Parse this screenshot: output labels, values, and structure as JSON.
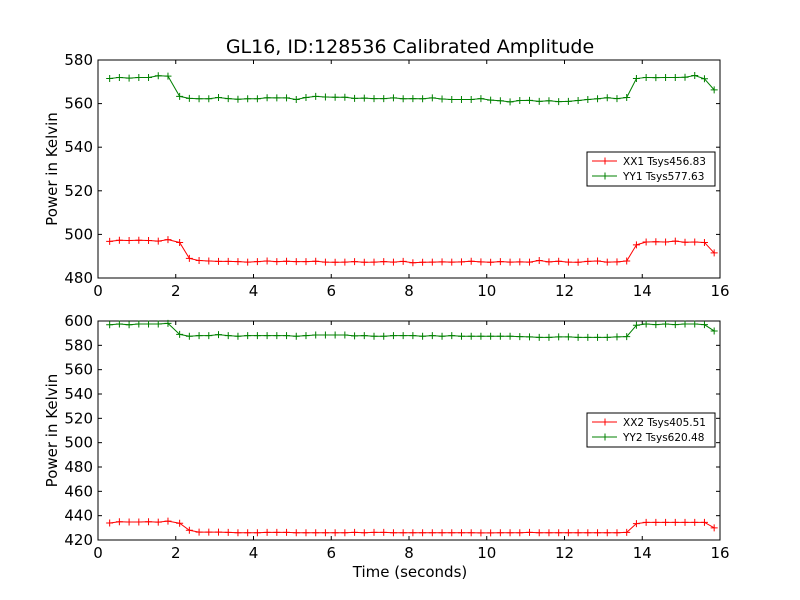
{
  "title": "GL16, ID:128536 Calibrated Amplitude",
  "xlabel": "Time (seconds)",
  "chart_data": [
    {
      "type": "line",
      "title": "GL16, ID:128536 Calibrated Amplitude",
      "xlabel": "",
      "ylabel": "Power in Kelvin",
      "xlim": [
        0,
        16
      ],
      "ylim": [
        480,
        580
      ],
      "xticks": [
        0,
        2,
        4,
        6,
        8,
        10,
        12,
        14,
        16
      ],
      "yticks": [
        480,
        500,
        520,
        540,
        560,
        580
      ],
      "grid": false,
      "legend_position": "center-right",
      "x": [
        0.3,
        0.55,
        0.8,
        1.05,
        1.3,
        1.55,
        1.8,
        2.1,
        2.35,
        2.6,
        2.85,
        3.1,
        3.35,
        3.6,
        3.85,
        4.1,
        4.35,
        4.6,
        4.85,
        5.1,
        5.35,
        5.6,
        5.85,
        6.1,
        6.35,
        6.6,
        6.85,
        7.1,
        7.35,
        7.6,
        7.85,
        8.1,
        8.35,
        8.6,
        8.85,
        9.1,
        9.35,
        9.6,
        9.85,
        10.1,
        10.35,
        10.6,
        10.85,
        11.1,
        11.35,
        11.6,
        11.85,
        12.1,
        12.35,
        12.6,
        12.85,
        13.1,
        13.35,
        13.6,
        13.85,
        14.1,
        14.35,
        14.6,
        14.85,
        15.1,
        15.35,
        15.6,
        15.85
      ],
      "series": [
        {
          "name": "XX1 Tsys456.83",
          "color": "#ff0000",
          "values": [
            496.8,
            497.3,
            497.2,
            497.3,
            497.2,
            496.9,
            497.6,
            496.3,
            489.0,
            488.0,
            487.8,
            487.6,
            487.6,
            487.5,
            487.3,
            487.5,
            487.8,
            487.5,
            487.7,
            487.5,
            487.5,
            487.7,
            487.3,
            487.2,
            487.3,
            487.5,
            487.2,
            487.3,
            487.5,
            487.3,
            487.6,
            487.0,
            487.2,
            487.3,
            487.4,
            487.3,
            487.4,
            487.7,
            487.4,
            487.2,
            487.5,
            487.3,
            487.4,
            487.3,
            488.0,
            487.4,
            487.7,
            487.3,
            487.2,
            487.6,
            487.8,
            487.3,
            487.4,
            487.8,
            495.2,
            496.5,
            496.6,
            496.5,
            496.9,
            496.4,
            496.5,
            496.3,
            491.5
          ]
        },
        {
          "name": "YY1 Tsys577.63",
          "color": "#008000",
          "values": [
            571.5,
            572.0,
            571.7,
            572.0,
            572.0,
            572.8,
            572.6,
            563.3,
            562.4,
            562.2,
            562.2,
            562.8,
            562.3,
            562.0,
            562.2,
            562.2,
            562.7,
            562.6,
            562.6,
            561.9,
            562.8,
            563.3,
            563.0,
            562.9,
            562.9,
            562.4,
            562.5,
            562.3,
            562.3,
            562.6,
            562.2,
            562.3,
            562.2,
            562.6,
            562.1,
            561.9,
            561.9,
            561.9,
            562.3,
            561.6,
            561.3,
            560.8,
            561.4,
            561.5,
            561.0,
            561.3,
            560.9,
            561.0,
            561.4,
            561.9,
            562.2,
            562.7,
            562.3,
            562.8,
            571.5,
            572.0,
            571.9,
            572.0,
            572.0,
            572.1,
            572.9,
            571.4,
            566.3
          ]
        }
      ]
    },
    {
      "type": "line",
      "title": "",
      "xlabel": "Time (seconds)",
      "ylabel": "Power in Kelvin",
      "xlim": [
        0,
        16
      ],
      "ylim": [
        420,
        600
      ],
      "xticks": [
        0,
        2,
        4,
        6,
        8,
        10,
        12,
        14,
        16
      ],
      "yticks": [
        420,
        440,
        460,
        480,
        500,
        520,
        540,
        560,
        580,
        600
      ],
      "grid": false,
      "legend_position": "center-right",
      "x": [
        0.3,
        0.55,
        0.8,
        1.05,
        1.3,
        1.55,
        1.8,
        2.1,
        2.35,
        2.6,
        2.85,
        3.1,
        3.35,
        3.6,
        3.85,
        4.1,
        4.35,
        4.6,
        4.85,
        5.1,
        5.35,
        5.6,
        5.85,
        6.1,
        6.35,
        6.6,
        6.85,
        7.1,
        7.35,
        7.6,
        7.85,
        8.1,
        8.35,
        8.6,
        8.85,
        9.1,
        9.35,
        9.6,
        9.85,
        10.1,
        10.35,
        10.6,
        10.85,
        11.1,
        11.35,
        11.6,
        11.85,
        12.1,
        12.35,
        12.6,
        12.85,
        13.1,
        13.35,
        13.6,
        13.85,
        14.1,
        14.35,
        14.6,
        14.85,
        15.1,
        15.35,
        15.6,
        15.85
      ],
      "series": [
        {
          "name": "XX2 Tsys405.51",
          "color": "#ff0000",
          "values": [
            434.0,
            435.0,
            434.8,
            434.8,
            435.0,
            434.7,
            435.5,
            433.8,
            428.0,
            426.5,
            426.5,
            426.5,
            426.3,
            426.0,
            426.0,
            426.0,
            426.3,
            426.3,
            426.3,
            426.0,
            426.0,
            426.0,
            426.0,
            426.0,
            426.0,
            426.3,
            426.0,
            426.3,
            426.3,
            426.0,
            426.0,
            426.0,
            426.0,
            426.0,
            426.0,
            426.0,
            426.0,
            426.0,
            425.9,
            425.9,
            426.0,
            426.0,
            426.0,
            426.3,
            426.0,
            426.0,
            426.0,
            426.0,
            426.0,
            426.0,
            426.0,
            426.0,
            426.0,
            426.3,
            433.5,
            434.5,
            434.5,
            434.5,
            434.5,
            434.5,
            434.5,
            434.5,
            430.0
          ]
        },
        {
          "name": "YY2 Tsys620.48",
          "color": "#008000",
          "values": [
            596.9,
            597.5,
            596.9,
            597.5,
            597.5,
            597.5,
            598.0,
            589.0,
            587.5,
            588.0,
            588.0,
            588.8,
            588.0,
            587.5,
            588.0,
            588.0,
            588.0,
            588.0,
            588.0,
            587.5,
            588.0,
            588.5,
            588.5,
            588.5,
            588.5,
            587.8,
            588.0,
            587.5,
            587.5,
            588.0,
            588.0,
            588.0,
            587.5,
            588.0,
            587.5,
            588.0,
            587.5,
            587.5,
            587.5,
            587.5,
            587.5,
            587.5,
            587.2,
            587.0,
            586.5,
            586.5,
            587.0,
            587.0,
            586.5,
            586.5,
            586.5,
            586.5,
            587.0,
            587.2,
            596.5,
            597.5,
            597.0,
            597.5,
            597.0,
            597.5,
            597.5,
            597.0,
            591.8
          ]
        }
      ]
    }
  ]
}
